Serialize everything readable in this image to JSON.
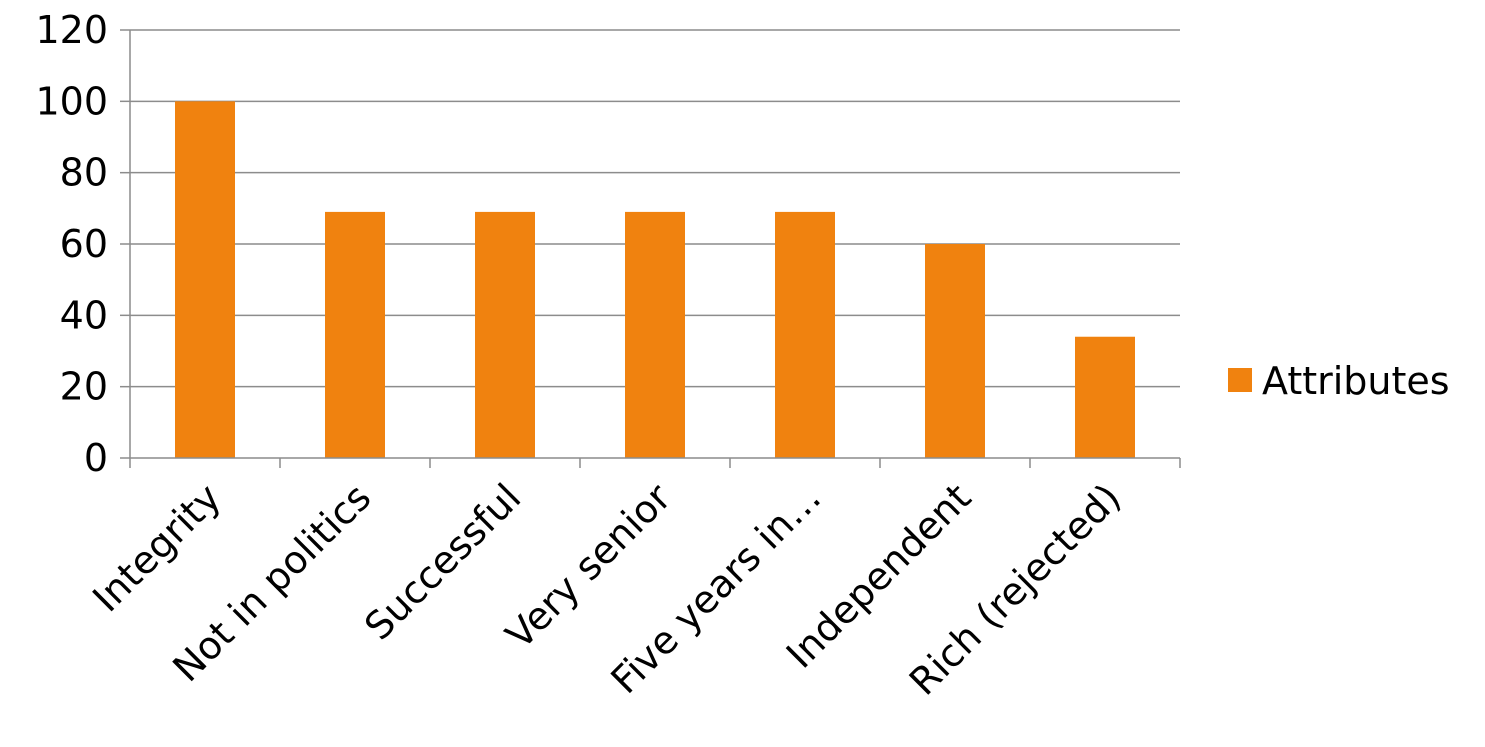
{
  "chart_data": {
    "type": "bar",
    "categories": [
      "Integrity",
      "Not in politics",
      "Successful",
      "Very senior",
      "Five years in…",
      "Independent",
      "Rich (rejected)"
    ],
    "series": [
      {
        "name": "Attributes",
        "values": [
          100,
          69,
          69,
          69,
          69,
          60,
          34
        ],
        "color": "#f0820f"
      }
    ],
    "title": "",
    "xlabel": "",
    "ylabel": "",
    "ylim": [
      0,
      120
    ],
    "yticks": [
      0,
      20,
      40,
      60,
      80,
      100,
      120
    ],
    "grid": true,
    "legend_position": "right"
  }
}
